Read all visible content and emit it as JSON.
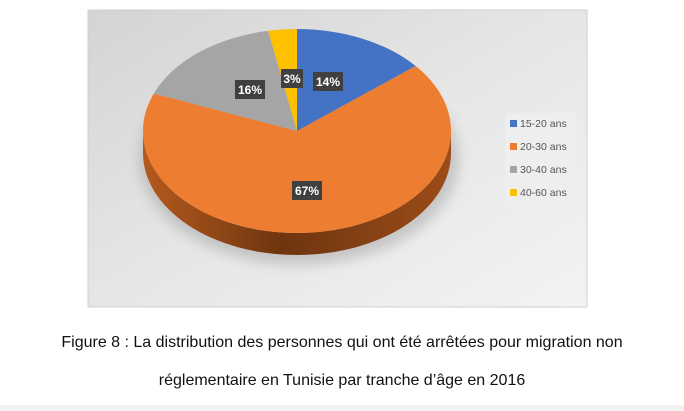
{
  "chart_data": {
    "type": "pie",
    "style": "3d",
    "categories": [
      "15-20 ans",
      "20-30 ans",
      "30-40 ans",
      "40-60 ans"
    ],
    "values": [
      14,
      67,
      16,
      3
    ],
    "labels": [
      "14%",
      "67%",
      "16%",
      "3%"
    ],
    "colors": [
      "#4472c4",
      "#ed7d31",
      "#a5a5a5",
      "#ffc000"
    ],
    "legend": "right",
    "title": ""
  },
  "caption": {
    "line1": "Figure 8 : La distribution des personnes qui ont été arrêtées pour migration non",
    "line2": "réglementaire en Tunisie par tranche d’âge en 2016"
  }
}
